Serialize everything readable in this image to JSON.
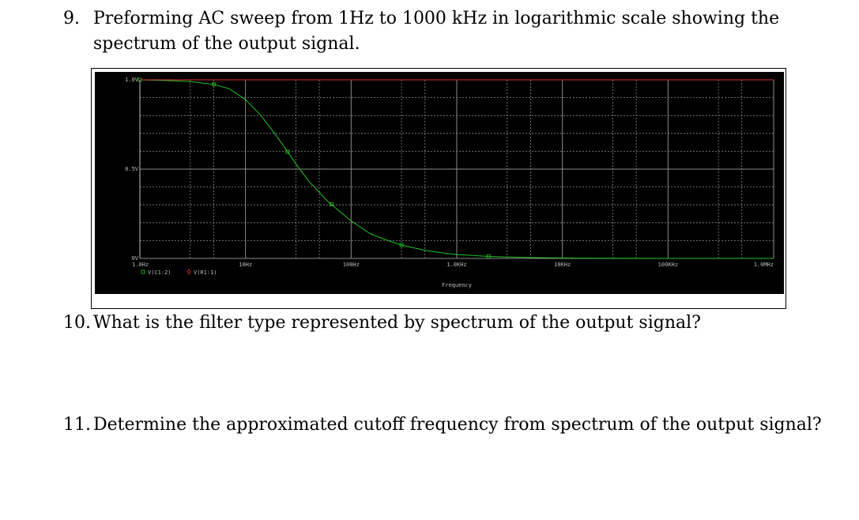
{
  "questions": [
    {
      "number": "9.",
      "text": "Preforming AC sweep from 1Hz to 1000 kHz in logarithmic scale showing the spectrum of the output signal."
    },
    {
      "number": "10.",
      "text": "What is the filter type represented by spectrum of the output signal?"
    },
    {
      "number": "11.",
      "text": "Determine the approximated cutoff frequency from spectrum of the output signal?"
    }
  ],
  "colors": {
    "background": "#000000",
    "grid": "#8c8c8c",
    "series_c1": "#22c322",
    "series_r1": "#e03030",
    "text": "#bdbdbd"
  },
  "chart_data": {
    "type": "line",
    "title": "",
    "xlabel": "Frequency",
    "ylabel": "",
    "xscale": "log",
    "xlim": [
      1,
      1000000
    ],
    "ylim": [
      0,
      1.0
    ],
    "grid": true,
    "x_ticks": [
      {
        "value": 1,
        "label": "1.0Hz"
      },
      {
        "value": 10,
        "label": "10Hz"
      },
      {
        "value": 100,
        "label": "100Hz"
      },
      {
        "value": 1000,
        "label": "1.0KHz"
      },
      {
        "value": 10000,
        "label": "10KHz"
      },
      {
        "value": 100000,
        "label": "100KHz"
      },
      {
        "value": 1000000,
        "label": "1.0MHz"
      }
    ],
    "y_ticks": [
      {
        "value": 0,
        "label": "0V"
      },
      {
        "value": 0.5,
        "label": "0.5V"
      },
      {
        "value": 1.0,
        "label": "1.0V"
      }
    ],
    "legend": [
      {
        "name": "V(C1:2)",
        "marker": "square",
        "color": "#22c322"
      },
      {
        "name": "V(R1:1)",
        "marker": "diamond",
        "color": "#e03030"
      }
    ],
    "series": [
      {
        "name": "V(C1:2)",
        "x": [
          1,
          2,
          3,
          5,
          7,
          10,
          14,
          20,
          30,
          40,
          60,
          100,
          150,
          200,
          300,
          500,
          800,
          1000,
          2000,
          5000,
          10000,
          100000,
          1000000
        ],
        "y": [
          1.0,
          0.995,
          0.99,
          0.975,
          0.95,
          0.89,
          0.8,
          0.68,
          0.53,
          0.43,
          0.32,
          0.21,
          0.14,
          0.11,
          0.075,
          0.045,
          0.028,
          0.022,
          0.011,
          0.005,
          0.002,
          0.0002,
          0.0
        ],
        "markers_x": [
          1,
          5,
          25,
          65,
          300,
          2000
        ]
      },
      {
        "name": "V(R1:1)",
        "x": [
          1,
          1000000
        ],
        "y": [
          1.0,
          1.0
        ]
      }
    ]
  }
}
